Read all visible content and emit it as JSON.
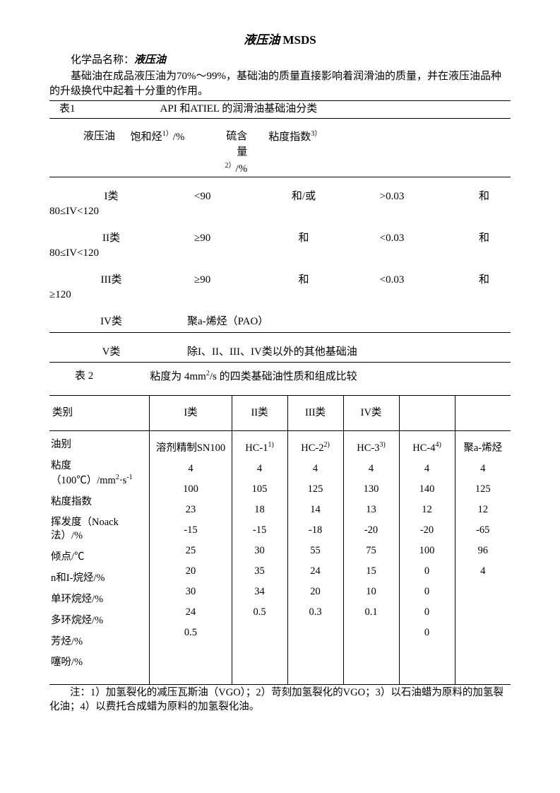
{
  "title_main": "液压油",
  "title_suffix": " MSDS",
  "chem_label": "化学品名称：",
  "chem_value": "液压油",
  "intro": "基础油在成品液压油为70%～99%，基础油的质量直接影响着润滑油的质量，并在液压油品种的升级换代中起着十分重的作用。",
  "table1": {
    "label": "表1",
    "caption": "API 和ATIEL 的润滑油基础油分类",
    "header": {
      "c1": "液压油",
      "c2_html": "饱和烃<sup>1）</sup>/%",
      "c4_html": "硫含量<sup>2）</sup>/%",
      "sub_html": "粘度指数<sup>3）</sup>"
    },
    "rows": [
      {
        "c1": "I类",
        "c2": "<90",
        "c3": "和/或",
        "c4": ">0.03",
        "c5": "和",
        "sub": "80≤IV<120"
      },
      {
        "c1": "II类",
        "c2": "≥90",
        "c3": "和",
        "c4": "<0.03",
        "c5": "和",
        "sub": "80≤IV<120"
      },
      {
        "c1": "III类",
        "c2": "≥90",
        "c3": "和",
        "c4": "<0.03",
        "c5": "和",
        "sub": "≥120"
      },
      {
        "c1": "IV类",
        "wide": "聚a-烯烃（PAO）"
      },
      {
        "c1": "V类",
        "wide": "除I、II、III、IV类以外的其他基础油"
      }
    ]
  },
  "table2": {
    "label": "表 2",
    "caption_html": "粘度为 4mm<sup>2</sup>/s 的四类基础油性质和组成比较",
    "headers": [
      "类别",
      "I类",
      "II类",
      "III类",
      "IV类",
      "",
      ""
    ],
    "props": [
      "油别",
      "粘度（100℃）/mm<sup>2</sup>·s<sup>-1</sup>",
      "粘度指数",
      "挥发度（Noack法）/%",
      "倾点/℃",
      "n和I-烷烃/%",
      "单环烷烃/%",
      "多环烷烃/%",
      "芳烃/%",
      "噻吩/%"
    ],
    "cols": [
      [
        "溶剂精制SN100",
        "4",
        "100",
        "23",
        "-15",
        "25",
        "20",
        "30",
        "24",
        "0.5"
      ],
      [
        "HC-1<sup>1)</sup>",
        "4",
        "105",
        "18",
        "-15",
        "30",
        "35",
        "34",
        "0.5",
        ""
      ],
      [
        "HC-2<sup>2)</sup>",
        "4",
        "125",
        "14",
        "-18",
        "55",
        "24",
        "20",
        "0.3",
        ""
      ],
      [
        "HC-3<sup>3)</sup>",
        "4",
        "130",
        "13",
        "-20",
        "75",
        "15",
        "10",
        "0.1",
        ""
      ],
      [
        "HC-4<sup>4)</sup>",
        "4",
        "140",
        "12",
        "-20",
        "100",
        "0",
        "0",
        "0",
        "0"
      ],
      [
        "聚a-烯烃",
        "4",
        "125",
        "12",
        "-65",
        "96",
        "4",
        "",
        "",
        ""
      ]
    ]
  },
  "footnote": "注：1）加氢裂化的减压瓦斯油（VGO）；2）苛刻加氢裂化的VGO；3）以石油蜡为原料的加氢裂化油；4）以费托合成蜡为原料的加氢裂化油。"
}
